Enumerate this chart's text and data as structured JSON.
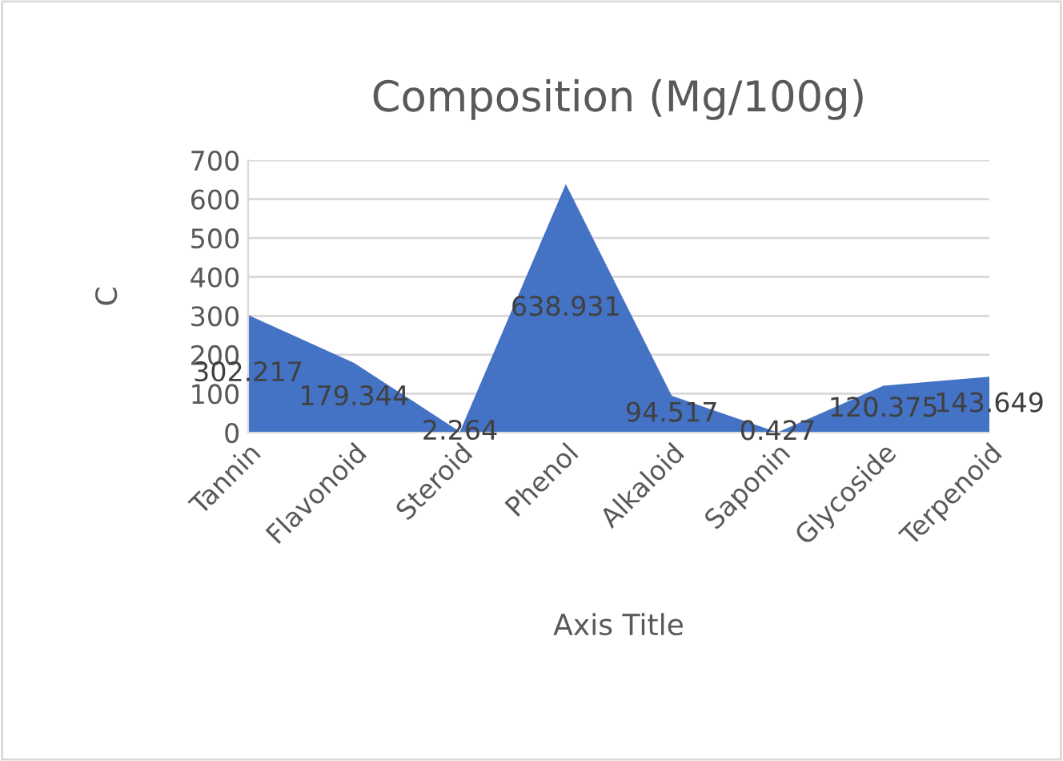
{
  "chart_data": {
    "type": "area",
    "title": "Composition (Mg/100g)",
    "xlabel": "Axis Title",
    "ylabel": "C",
    "categories": [
      "Tannin",
      "Flavonoid",
      "Steroid",
      "Phenol",
      "Alkaloid",
      "Saponin",
      "Glycoside",
      "Terpenoid"
    ],
    "series": [
      {
        "color": "#4472c4",
        "values": [
          302.217,
          179.344,
          2.264,
          638.931,
          94.517,
          0.427,
          120.375,
          143.649
        ]
      }
    ],
    "value_labels": [
      "302.217",
      "179.344",
      "2.264",
      "638.931",
      "94.517",
      "0.427",
      "120.375",
      "143.649"
    ],
    "ylim": [
      0,
      700
    ],
    "yticks": [
      0,
      100,
      200,
      300,
      400,
      500,
      600,
      700
    ],
    "grid": "y"
  }
}
